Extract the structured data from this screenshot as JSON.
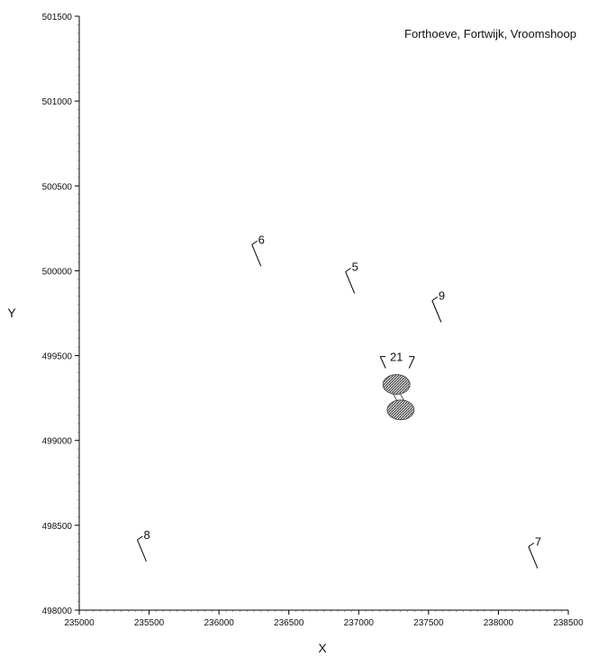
{
  "chart_data": {
    "type": "scatter",
    "title": "Forthoeve, Fortwijk, Vroomshoop",
    "xlabel": "X",
    "ylabel": "Y",
    "xlim": [
      235000,
      238500
    ],
    "ylim": [
      498000,
      501500
    ],
    "xticks": [
      "235000",
      "235500",
      "236000",
      "236500",
      "237000",
      "237500",
      "238000",
      "238500"
    ],
    "yticks": [
      "498000",
      "498500",
      "499000",
      "499500",
      "500000",
      "500500",
      "501000",
      "501500"
    ],
    "grid": false,
    "points": [
      {
        "label": "6",
        "x": 236300,
        "y": 500080
      },
      {
        "label": "5",
        "x": 236970,
        "y": 499920
      },
      {
        "label": "9",
        "x": 237590,
        "y": 499750
      },
      {
        "label": "21",
        "x": 237270,
        "y": 499420
      },
      {
        "label": "8",
        "x": 235480,
        "y": 498340
      },
      {
        "label": "7",
        "x": 238280,
        "y": 498300
      }
    ],
    "sources": [
      {
        "x": 237270,
        "y": 499330
      },
      {
        "x": 237300,
        "y": 499180
      }
    ]
  }
}
